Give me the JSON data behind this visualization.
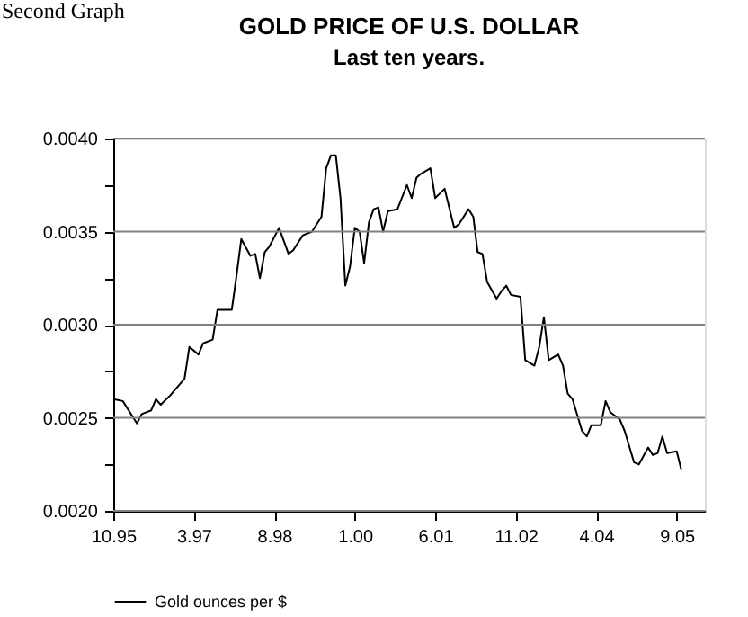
{
  "chart_data": {
    "type": "line",
    "title": "GOLD PRICE OF U.S. DOLLAR",
    "subtitle": "Last ten years.",
    "annotations": [
      "Second Graph"
    ],
    "series": [
      {
        "name": "Gold ounces per $",
        "color": "#000000",
        "x": [
          "1995-10",
          "1995-12",
          "1996-03",
          "1996-04",
          "1996-06",
          "1996-07",
          "1996-08",
          "1996-10",
          "1996-11",
          "1997-01",
          "1997-02",
          "1997-04",
          "1997-05",
          "1997-07",
          "1997-08",
          "1997-11",
          "1997-12",
          "1998-01",
          "1998-03",
          "1998-04",
          "1998-05",
          "1998-06",
          "1998-07",
          "1998-09",
          "1998-11",
          "1998-12",
          "1999-02",
          "1999-04",
          "1999-06",
          "1999-07",
          "1999-08",
          "1999-09",
          "1999-10",
          "1999-11",
          "1999-12",
          "2000-01",
          "2000-02",
          "2000-03",
          "2000-04",
          "2000-05",
          "2000-06",
          "2000-07",
          "2000-08",
          "2000-10",
          "2000-12",
          "2001-01",
          "2001-02",
          "2001-03",
          "2001-05",
          "2001-06",
          "2001-08",
          "2001-10",
          "2001-11",
          "2002-01",
          "2002-02",
          "2002-03",
          "2002-04",
          "2002-05",
          "2002-07",
          "2002-08",
          "2002-09",
          "2002-10",
          "2002-12",
          "2003-01",
          "2003-03",
          "2003-04",
          "2003-05",
          "2003-06",
          "2003-08",
          "2003-09",
          "2003-10",
          "2003-11",
          "2004-01",
          "2004-02",
          "2004-03",
          "2004-05",
          "2004-06",
          "2004-07",
          "2004-09",
          "2004-10",
          "2004-12",
          "2005-01",
          "2005-03",
          "2005-04",
          "2005-05",
          "2005-06",
          "2005-07",
          "2005-09",
          "2005-10"
        ],
        "values": [
          0.0026,
          0.00259,
          0.00247,
          0.00252,
          0.00254,
          0.0026,
          0.00257,
          0.00262,
          0.00265,
          0.00271,
          0.00288,
          0.00284,
          0.0029,
          0.00292,
          0.00308,
          0.00308,
          0.00326,
          0.00346,
          0.00337,
          0.00338,
          0.00325,
          0.00339,
          0.00342,
          0.00352,
          0.00338,
          0.0034,
          0.00348,
          0.0035,
          0.00358,
          0.00384,
          0.00391,
          0.00391,
          0.00368,
          0.00321,
          0.00331,
          0.00352,
          0.0035,
          0.00333,
          0.00355,
          0.00362,
          0.00363,
          0.0035,
          0.00361,
          0.00362,
          0.00375,
          0.00368,
          0.00379,
          0.00381,
          0.00384,
          0.00368,
          0.00373,
          0.00352,
          0.00354,
          0.00362,
          0.00358,
          0.00339,
          0.00338,
          0.00323,
          0.00314,
          0.00318,
          0.00321,
          0.00316,
          0.00315,
          0.00281,
          0.00278,
          0.00288,
          0.00304,
          0.00281,
          0.00284,
          0.00278,
          0.00263,
          0.0026,
          0.00243,
          0.0024,
          0.00246,
          0.00246,
          0.00259,
          0.00253,
          0.00249,
          0.00243,
          0.00226,
          0.00225,
          0.00234,
          0.0023,
          0.00231,
          0.0024,
          0.00231,
          0.00232,
          0.00222
        ]
      }
    ],
    "xlim": [
      "1995-10",
      "2006-03"
    ],
    "xticks": [
      {
        "value": "1995-10",
        "label": "10.95"
      },
      {
        "value": "1997-03",
        "label": "3.97"
      },
      {
        "value": "1998-08",
        "label": "8.98"
      },
      {
        "value": "2000-01",
        "label": "1.00"
      },
      {
        "value": "2001-06",
        "label": "6.01"
      },
      {
        "value": "2002-11",
        "label": "11.02"
      },
      {
        "value": "2004-04",
        "label": "4.04"
      },
      {
        "value": "2005-09",
        "label": "9.05"
      }
    ],
    "ylim": [
      0.002,
      0.004
    ],
    "yticks": [
      {
        "value": 0.002,
        "label": "0.0020"
      },
      {
        "value": 0.00225,
        "label": null
      },
      {
        "value": 0.0025,
        "label": "0.0025"
      },
      {
        "value": 0.00275,
        "label": null
      },
      {
        "value": 0.003,
        "label": "0.0030"
      },
      {
        "value": 0.00325,
        "label": null
      },
      {
        "value": 0.0035,
        "label": "0.0035"
      },
      {
        "value": 0.00375,
        "label": null
      },
      {
        "value": 0.004,
        "label": "0.0040"
      }
    ],
    "grid": "y",
    "legend": "bottom",
    "marker": "none",
    "line_style": "solid"
  }
}
